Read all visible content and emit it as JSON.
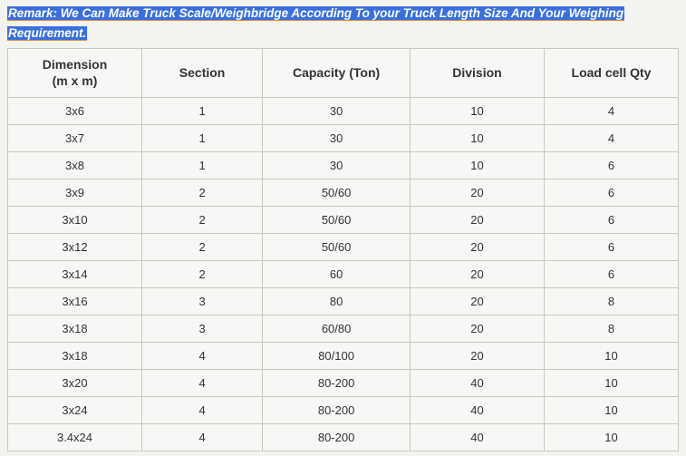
{
  "remark": {
    "label": "Remark:",
    "text_line1": "We Can Make Truck Scale/Weighbridge According To your Truck Length Size And Your Weighing",
    "text_line2": "Requirement."
  },
  "table": {
    "headers": {
      "dimension_l1": "Dimension",
      "dimension_l2": "(m x m)",
      "section": "Section",
      "capacity": "Capacity (Ton)",
      "division": "Division",
      "loadcell": "Load cell Qty"
    },
    "rows": [
      {
        "dimension": "3x6",
        "section": "1",
        "capacity": "30",
        "division": "10",
        "loadcell": "4"
      },
      {
        "dimension": "3x7",
        "section": "1",
        "capacity": "30",
        "division": "10",
        "loadcell": "4"
      },
      {
        "dimension": "3x8",
        "section": "1",
        "capacity": "30",
        "division": "10",
        "loadcell": "6"
      },
      {
        "dimension": "3x9",
        "section": "2",
        "capacity": "50/60",
        "division": "20",
        "loadcell": "6"
      },
      {
        "dimension": "3x10",
        "section": "2",
        "capacity": "50/60",
        "division": "20",
        "loadcell": "6"
      },
      {
        "dimension": "3x12",
        "section": "2",
        "capacity": "50/60",
        "division": "20",
        "loadcell": "6"
      },
      {
        "dimension": "3x14",
        "section": "2",
        "capacity": "60",
        "division": "20",
        "loadcell": "6"
      },
      {
        "dimension": "3x16",
        "section": "3",
        "capacity": "80",
        "division": "20",
        "loadcell": "8"
      },
      {
        "dimension": "3x18",
        "section": "3",
        "capacity": "60/80",
        "division": "20",
        "loadcell": "8"
      },
      {
        "dimension": "3x18",
        "section": "4",
        "capacity": "80/100",
        "division": "20",
        "loadcell": "10"
      },
      {
        "dimension": "3x20",
        "section": "4",
        "capacity": "80-200",
        "division": "40",
        "loadcell": "10"
      },
      {
        "dimension": "3x24",
        "section": "4",
        "capacity": "80-200",
        "division": "40",
        "loadcell": "10"
      },
      {
        "dimension": "3.4x24",
        "section": "4",
        "capacity": "80-200",
        "division": "40",
        "loadcell": "10"
      }
    ]
  },
  "style": {
    "highlight_bg": "#3a6fdf",
    "highlight_fg": "#ffffff",
    "underline_color": "#e08a3a",
    "table_border": "#c9c6bf",
    "page_bg": "#f3f3f0",
    "cell_bg": "#f7f7f5",
    "text_color": "#333333",
    "header_fontsize_pt": 11,
    "cell_fontsize_pt": 10
  }
}
